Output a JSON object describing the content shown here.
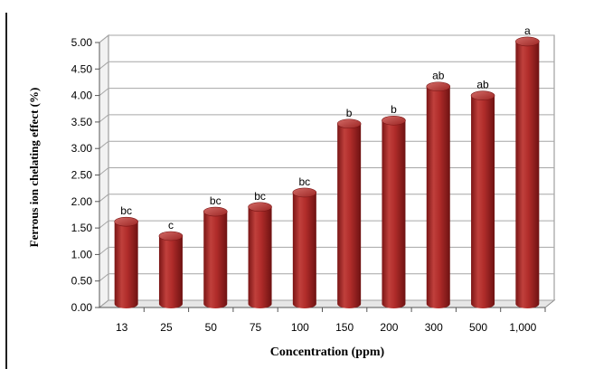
{
  "chart_data": {
    "type": "bar",
    "categories": [
      "13",
      "25",
      "50",
      "75",
      "100",
      "150",
      "200",
      "300",
      "500",
      "1,000"
    ],
    "values": [
      1.55,
      1.28,
      1.74,
      1.83,
      2.1,
      3.4,
      3.46,
      4.1,
      3.93,
      4.95
    ],
    "data_labels": [
      "bc",
      "c",
      "bc",
      "bc",
      "bc",
      "b",
      "b",
      "ab",
      "ab",
      "a"
    ],
    "title": "",
    "xlabel": "Concentration (ppm)",
    "ylabel": "Ferrous ion chelating effect (%)",
    "ylim": [
      0,
      5
    ],
    "yticks": [
      "0.00",
      "0.50",
      "1.00",
      "1.50",
      "2.00",
      "2.50",
      "3.00",
      "3.50",
      "4.00",
      "4.50",
      "5.00"
    ],
    "grid": true,
    "legend": "none",
    "bar_color": "#a52a2a"
  }
}
